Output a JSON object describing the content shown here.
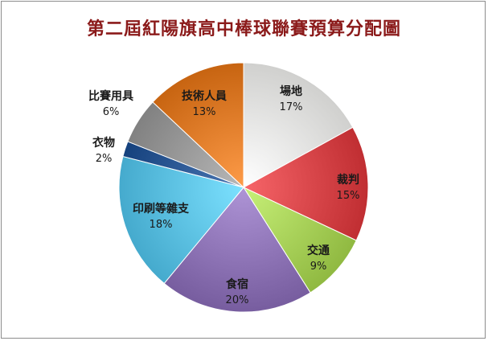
{
  "chart_data": {
    "type": "pie",
    "title": "第二屆紅陽旗高中棒球聯賽預算分配圖",
    "start_angle_deg": 0,
    "direction": "clockwise",
    "legend": "none",
    "slices": [
      {
        "label": "場地",
        "value": 17,
        "pct_label": "17%",
        "color": "#e9e9e7"
      },
      {
        "label": "裁判",
        "value": 15,
        "pct_label": "15%",
        "color": "#d9474b"
      },
      {
        "label": "交通",
        "value": 9,
        "pct_label": "9%",
        "color": "#a9d25a"
      },
      {
        "label": "食宿",
        "value": 20,
        "pct_label": "20%",
        "color": "#9076b8"
      },
      {
        "label": "印刷等雜支",
        "value": 18,
        "pct_label": "18%",
        "color": "#5ec3e6"
      },
      {
        "label": "衣物",
        "value": 2,
        "pct_label": "2%",
        "color": "#2e5a96"
      },
      {
        "label": "比賽用具",
        "value": 6,
        "pct_label": "6%",
        "color": "#9a9a9a"
      },
      {
        "label": "技術人員",
        "value": 13,
        "pct_label": "13%",
        "color": "#e07d2a"
      }
    ]
  }
}
